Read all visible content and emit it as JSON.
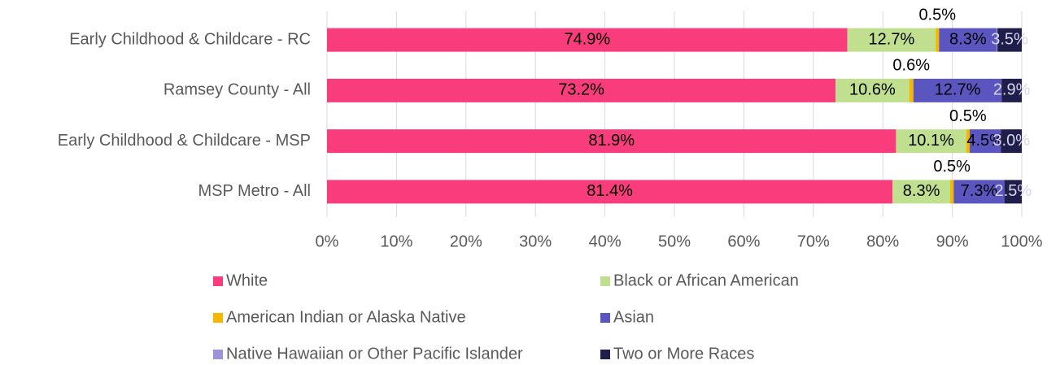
{
  "chart_data": {
    "type": "stacked_barh",
    "categories": [
      "Early Childhood & Childcare - RC",
      "Ramsey County - All",
      "Early Childhood & Childcare - MSP",
      "MSP Metro - All"
    ],
    "series": [
      {
        "name": "White",
        "color": "#f83c7c",
        "values": [
          74.9,
          73.2,
          81.9,
          81.4
        ],
        "value_labels": [
          "74.9%",
          "73.2%",
          "81.9%",
          "81.4%"
        ]
      },
      {
        "name": "Black or African American",
        "color": "#c0e090",
        "values": [
          12.7,
          10.6,
          10.1,
          8.3
        ],
        "value_labels": [
          "12.7%",
          "10.6%",
          "10.1%",
          "8.3%"
        ]
      },
      {
        "name": "American Indian or Alaska Native",
        "color": "#f5b800",
        "values": [
          0.5,
          0.6,
          0.5,
          0.5
        ],
        "value_labels": [
          "0.5%",
          "0.6%",
          "0.5%",
          "0.5%"
        ]
      },
      {
        "name": "Asian",
        "color": "#5b55c0",
        "values": [
          8.3,
          12.7,
          4.5,
          7.3
        ],
        "value_labels": [
          "8.3%",
          "12.7%",
          "4.5%",
          "7.3%"
        ]
      },
      {
        "name": "Native Hawaiian or Other Pacific Islander",
        "color": "#9b94d8",
        "values": [
          0.1,
          0,
          0,
          0
        ]
      },
      {
        "name": "Two or More Races",
        "color": "#1f1d4a",
        "values": [
          3.5,
          2.9,
          3.0,
          2.5
        ],
        "value_labels": [
          "3.5%",
          "2.9%",
          "3.0%",
          "2.5%"
        ]
      }
    ],
    "xlim": [
      0,
      100
    ],
    "xticks": [
      {
        "value": 0,
        "label": "0%"
      },
      {
        "value": 10,
        "label": "10%"
      },
      {
        "value": 20,
        "label": "20%"
      },
      {
        "value": 30,
        "label": "30%"
      },
      {
        "value": 40,
        "label": "40%"
      },
      {
        "value": 50,
        "label": "50%"
      },
      {
        "value": 60,
        "label": "60%"
      },
      {
        "value": 70,
        "label": "70%"
      },
      {
        "value": 80,
        "label": "80%"
      },
      {
        "value": 90,
        "label": "90%"
      },
      {
        "value": 100,
        "label": "100%"
      }
    ],
    "grid": true,
    "legend": "bottom"
  }
}
